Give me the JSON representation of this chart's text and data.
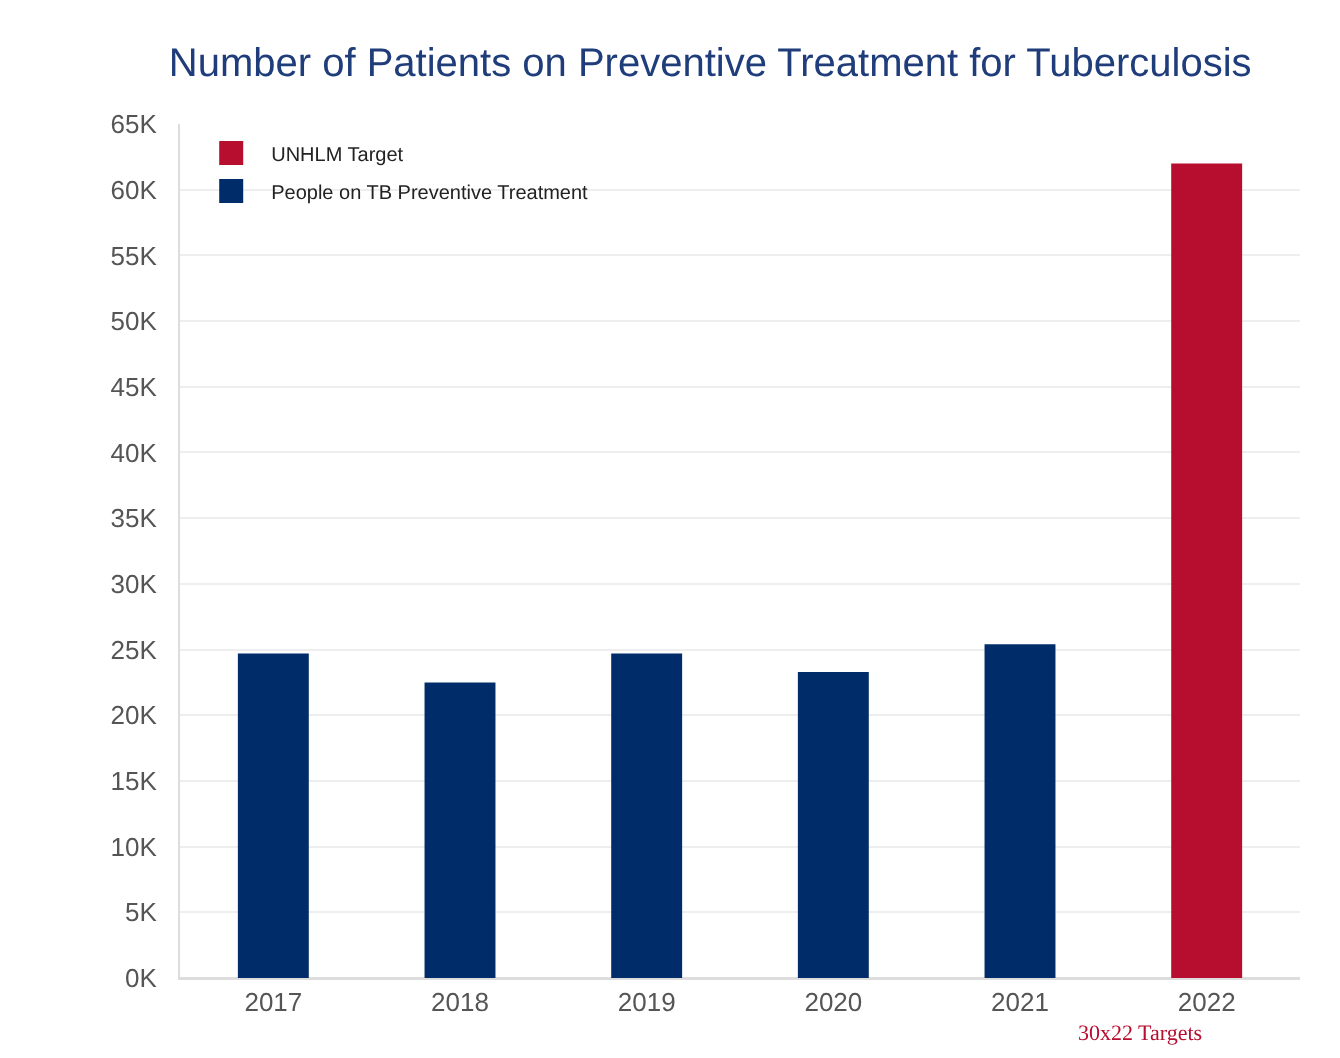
{
  "chart_data": {
    "type": "bar",
    "title": "Number of Patients on Preventive Treatment for Tuberculosis",
    "categories": [
      "2017",
      "2018",
      "2019",
      "2020",
      "2021",
      "2022"
    ],
    "series": [
      {
        "name": "UNHLM Target",
        "color": "#b70d2e",
        "values": [
          null,
          null,
          null,
          null,
          null,
          62000
        ]
      },
      {
        "name": "People on TB Preventive Treatment",
        "color": "#002c69",
        "values": [
          24700,
          22500,
          24700,
          23300,
          25400,
          null
        ]
      }
    ],
    "ylim": [
      0,
      65000
    ],
    "yticks": [
      {
        "value": 0,
        "label": "0K"
      },
      {
        "value": 5000,
        "label": "5K"
      },
      {
        "value": 10000,
        "label": "10K"
      },
      {
        "value": 15000,
        "label": "15K"
      },
      {
        "value": 20000,
        "label": "20K"
      },
      {
        "value": 25000,
        "label": "25K"
      },
      {
        "value": 30000,
        "label": "30K"
      },
      {
        "value": 35000,
        "label": "35K"
      },
      {
        "value": 40000,
        "label": "40K"
      },
      {
        "value": 45000,
        "label": "45K"
      },
      {
        "value": 50000,
        "label": "50K"
      },
      {
        "value": 55000,
        "label": "55K"
      },
      {
        "value": 60000,
        "label": "60K"
      },
      {
        "value": 65000,
        "label": "65K"
      }
    ],
    "grid": "y",
    "legend": "top left",
    "annotations": [
      "30x22 Targets"
    ]
  }
}
